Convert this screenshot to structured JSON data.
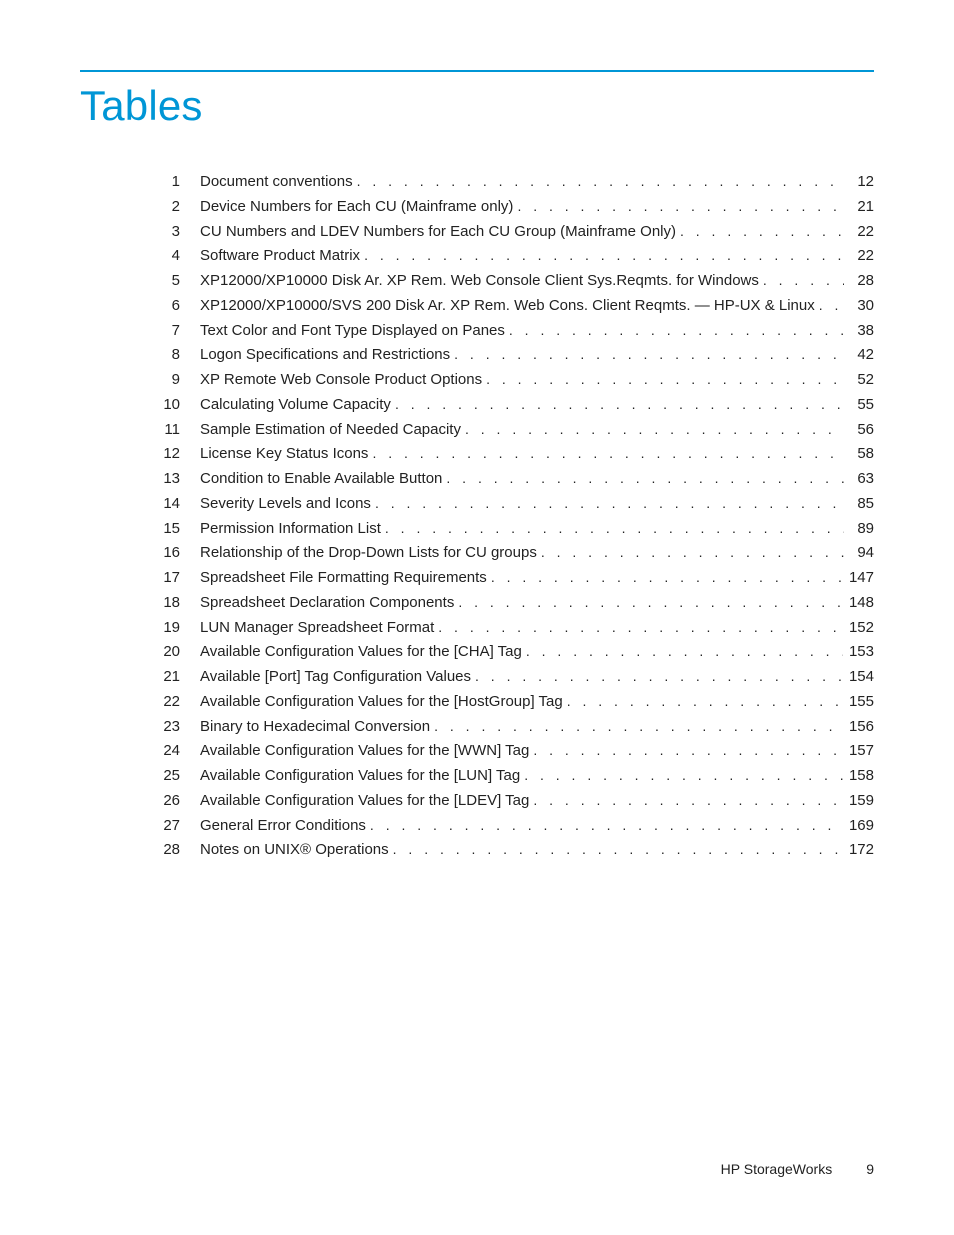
{
  "heading": "Tables",
  "heading_color": "#0096d6",
  "rule_color": "#0096d6",
  "text_color": "#222222",
  "background_color": "#ffffff",
  "font_family": "Arial Narrow",
  "entries": [
    {
      "n": "1",
      "title": "Document conventions",
      "page": "12"
    },
    {
      "n": "2",
      "title": "Device Numbers for Each CU (Mainframe only)",
      "page": "21"
    },
    {
      "n": "3",
      "title": "CU Numbers and LDEV Numbers for Each CU Group (Mainframe Only)",
      "page": "22"
    },
    {
      "n": "4",
      "title": "Software Product Matrix",
      "page": "22"
    },
    {
      "n": "5",
      "title": "XP12000/XP10000 Disk Ar. XP Rem. Web Console Client Sys.Reqmts. for Windows",
      "page": "28"
    },
    {
      "n": "6",
      "title": "XP12000/XP10000/SVS 200 Disk Ar. XP Rem. Web Cons. Client Reqmts. — HP-UX & Linux",
      "page": "30"
    },
    {
      "n": "7",
      "title": "Text Color and Font Type Displayed on Panes",
      "page": "38"
    },
    {
      "n": "8",
      "title": "Logon Specifications and Restrictions",
      "page": "42"
    },
    {
      "n": "9",
      "title": "XP Remote Web Console Product Options",
      "page": "52"
    },
    {
      "n": "10",
      "title": "Calculating Volume Capacity",
      "page": "55"
    },
    {
      "n": "11",
      "title": "Sample Estimation of Needed Capacity",
      "page": "56"
    },
    {
      "n": "12",
      "title": "License Key Status Icons",
      "page": "58"
    },
    {
      "n": "13",
      "title": "Condition to Enable Available Button",
      "page": "63"
    },
    {
      "n": "14",
      "title": "Severity Levels and Icons",
      "page": "85"
    },
    {
      "n": "15",
      "title": "Permission Information List",
      "page": "89"
    },
    {
      "n": "16",
      "title": "Relationship of the Drop-Down Lists for CU groups",
      "page": "94"
    },
    {
      "n": "17",
      "title": "Spreadsheet File Formatting Requirements",
      "page": "147"
    },
    {
      "n": "18",
      "title": "Spreadsheet Declaration Components",
      "page": "148"
    },
    {
      "n": "19",
      "title": "LUN Manager Spreadsheet Format",
      "page": "152"
    },
    {
      "n": "20",
      "title": "Available Configuration Values for the [CHA] Tag",
      "page": "153"
    },
    {
      "n": "21",
      "title": "Available [Port] Tag Configuration Values",
      "page": "154"
    },
    {
      "n": "22",
      "title": "Available Configuration Values for the [HostGroup] Tag",
      "page": "155"
    },
    {
      "n": "23",
      "title": "Binary to Hexadecimal Conversion",
      "page": "156"
    },
    {
      "n": "24",
      "title": "Available Configuration Values for the [WWN] Tag",
      "page": "157"
    },
    {
      "n": "25",
      "title": "Available Configuration Values for the [LUN] Tag",
      "page": "158"
    },
    {
      "n": "26",
      "title": "Available Configuration Values for the [LDEV] Tag",
      "page": "159"
    },
    {
      "n": "27",
      "title": "General Error Conditions",
      "page": "169"
    },
    {
      "n": "28",
      "title": "Notes on UNIX® Operations",
      "page": "172"
    }
  ],
  "footer": {
    "publisher": "HP StorageWorks",
    "page_number": "9"
  }
}
